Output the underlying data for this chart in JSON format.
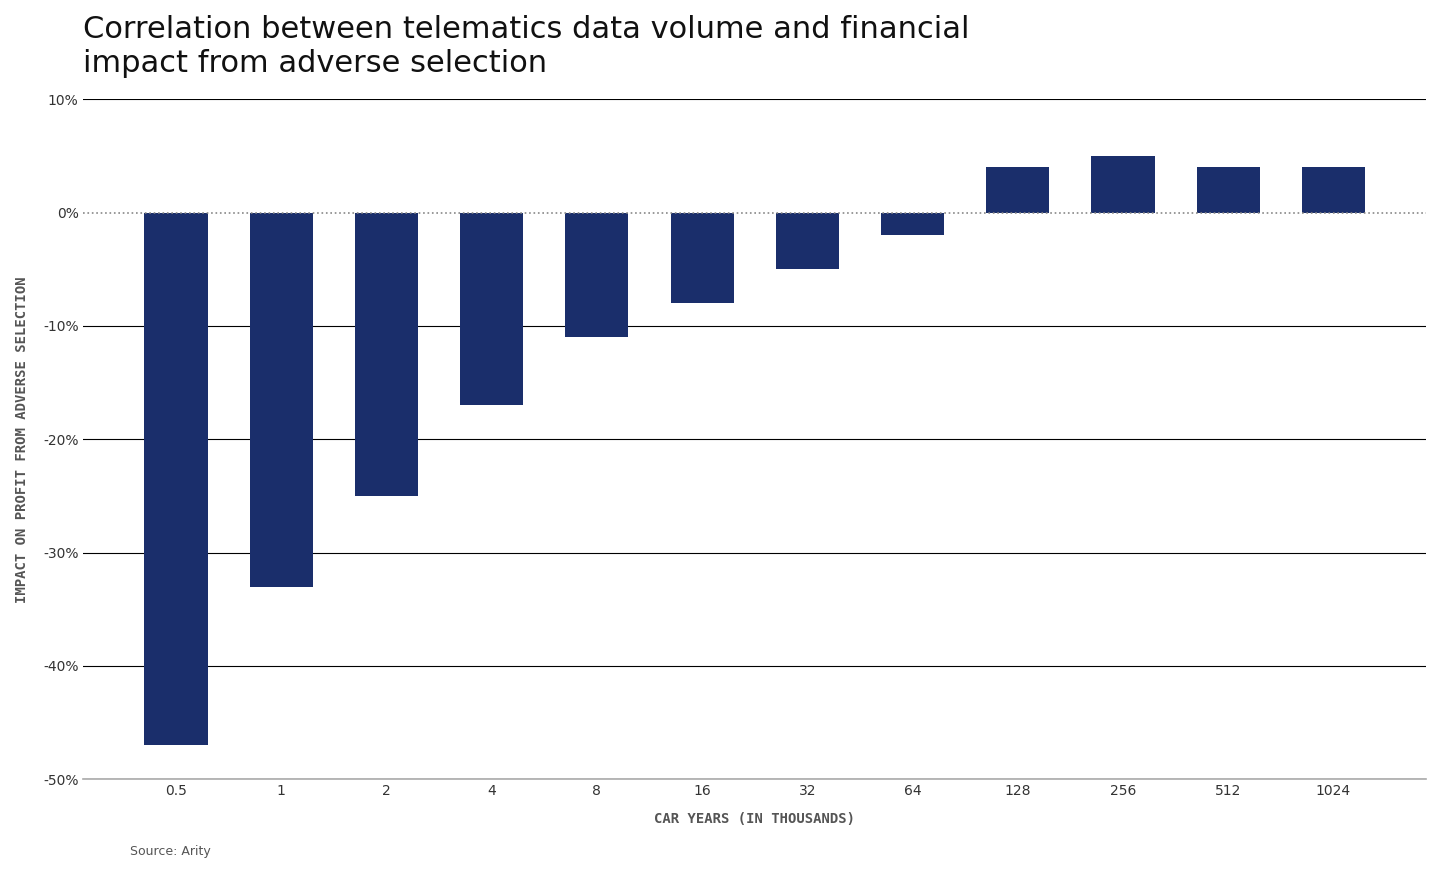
{
  "title": "Correlation between telematics data volume and financial\nimpact from adverse selection",
  "categories": [
    "0.5",
    "1",
    "2",
    "4",
    "8",
    "16",
    "32",
    "64",
    "128",
    "256",
    "512",
    "1024"
  ],
  "values": [
    -47,
    -33,
    -25,
    -17,
    -11,
    -8,
    -5,
    -2,
    4,
    5,
    4,
    4
  ],
  "bar_color": "#1a2e6b",
  "xlabel": "CAR YEARS (IN THOUSANDS)",
  "ylabel": "IMPACT ON PROFIT FROM ADVERSE SELECTION",
  "source": "Source: Arity",
  "ylim": [
    -50,
    10
  ],
  "yticks": [
    -50,
    -40,
    -30,
    -20,
    -10,
    0,
    10
  ],
  "ytick_labels": [
    "-50%",
    "-40%",
    "-30%",
    "-20%",
    "-10%",
    "0%",
    "10%"
  ],
  "title_fontsize": 22,
  "axis_label_fontsize": 10,
  "tick_fontsize": 10,
  "background_color": "#ffffff",
  "grid_color": "#000000",
  "dotted_line_color": "#888888"
}
